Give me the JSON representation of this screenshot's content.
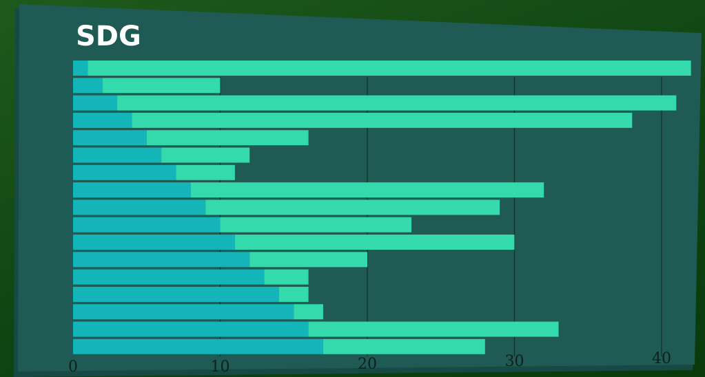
{
  "chart_data": {
    "type": "bar",
    "orientation": "horizontal",
    "stacked": true,
    "title": "SDG",
    "xlabel": "",
    "ylabel": "",
    "xlim": [
      0,
      40
    ],
    "x_ticks": [
      "0",
      "10",
      "20",
      "30",
      "40"
    ],
    "grid": true,
    "legend": "none",
    "series": [
      {
        "values": [
          1,
          2,
          3,
          4,
          5,
          6,
          7,
          8,
          9,
          10,
          11,
          12,
          13,
          14,
          15,
          16,
          17
        ]
      },
      {
        "values": [
          41,
          8,
          38,
          34,
          11,
          6,
          4,
          24,
          20,
          13,
          19,
          8,
          3,
          2,
          2,
          17,
          11
        ]
      }
    ],
    "colors": [
      "#14b5b8",
      "#34d9ac"
    ]
  }
}
